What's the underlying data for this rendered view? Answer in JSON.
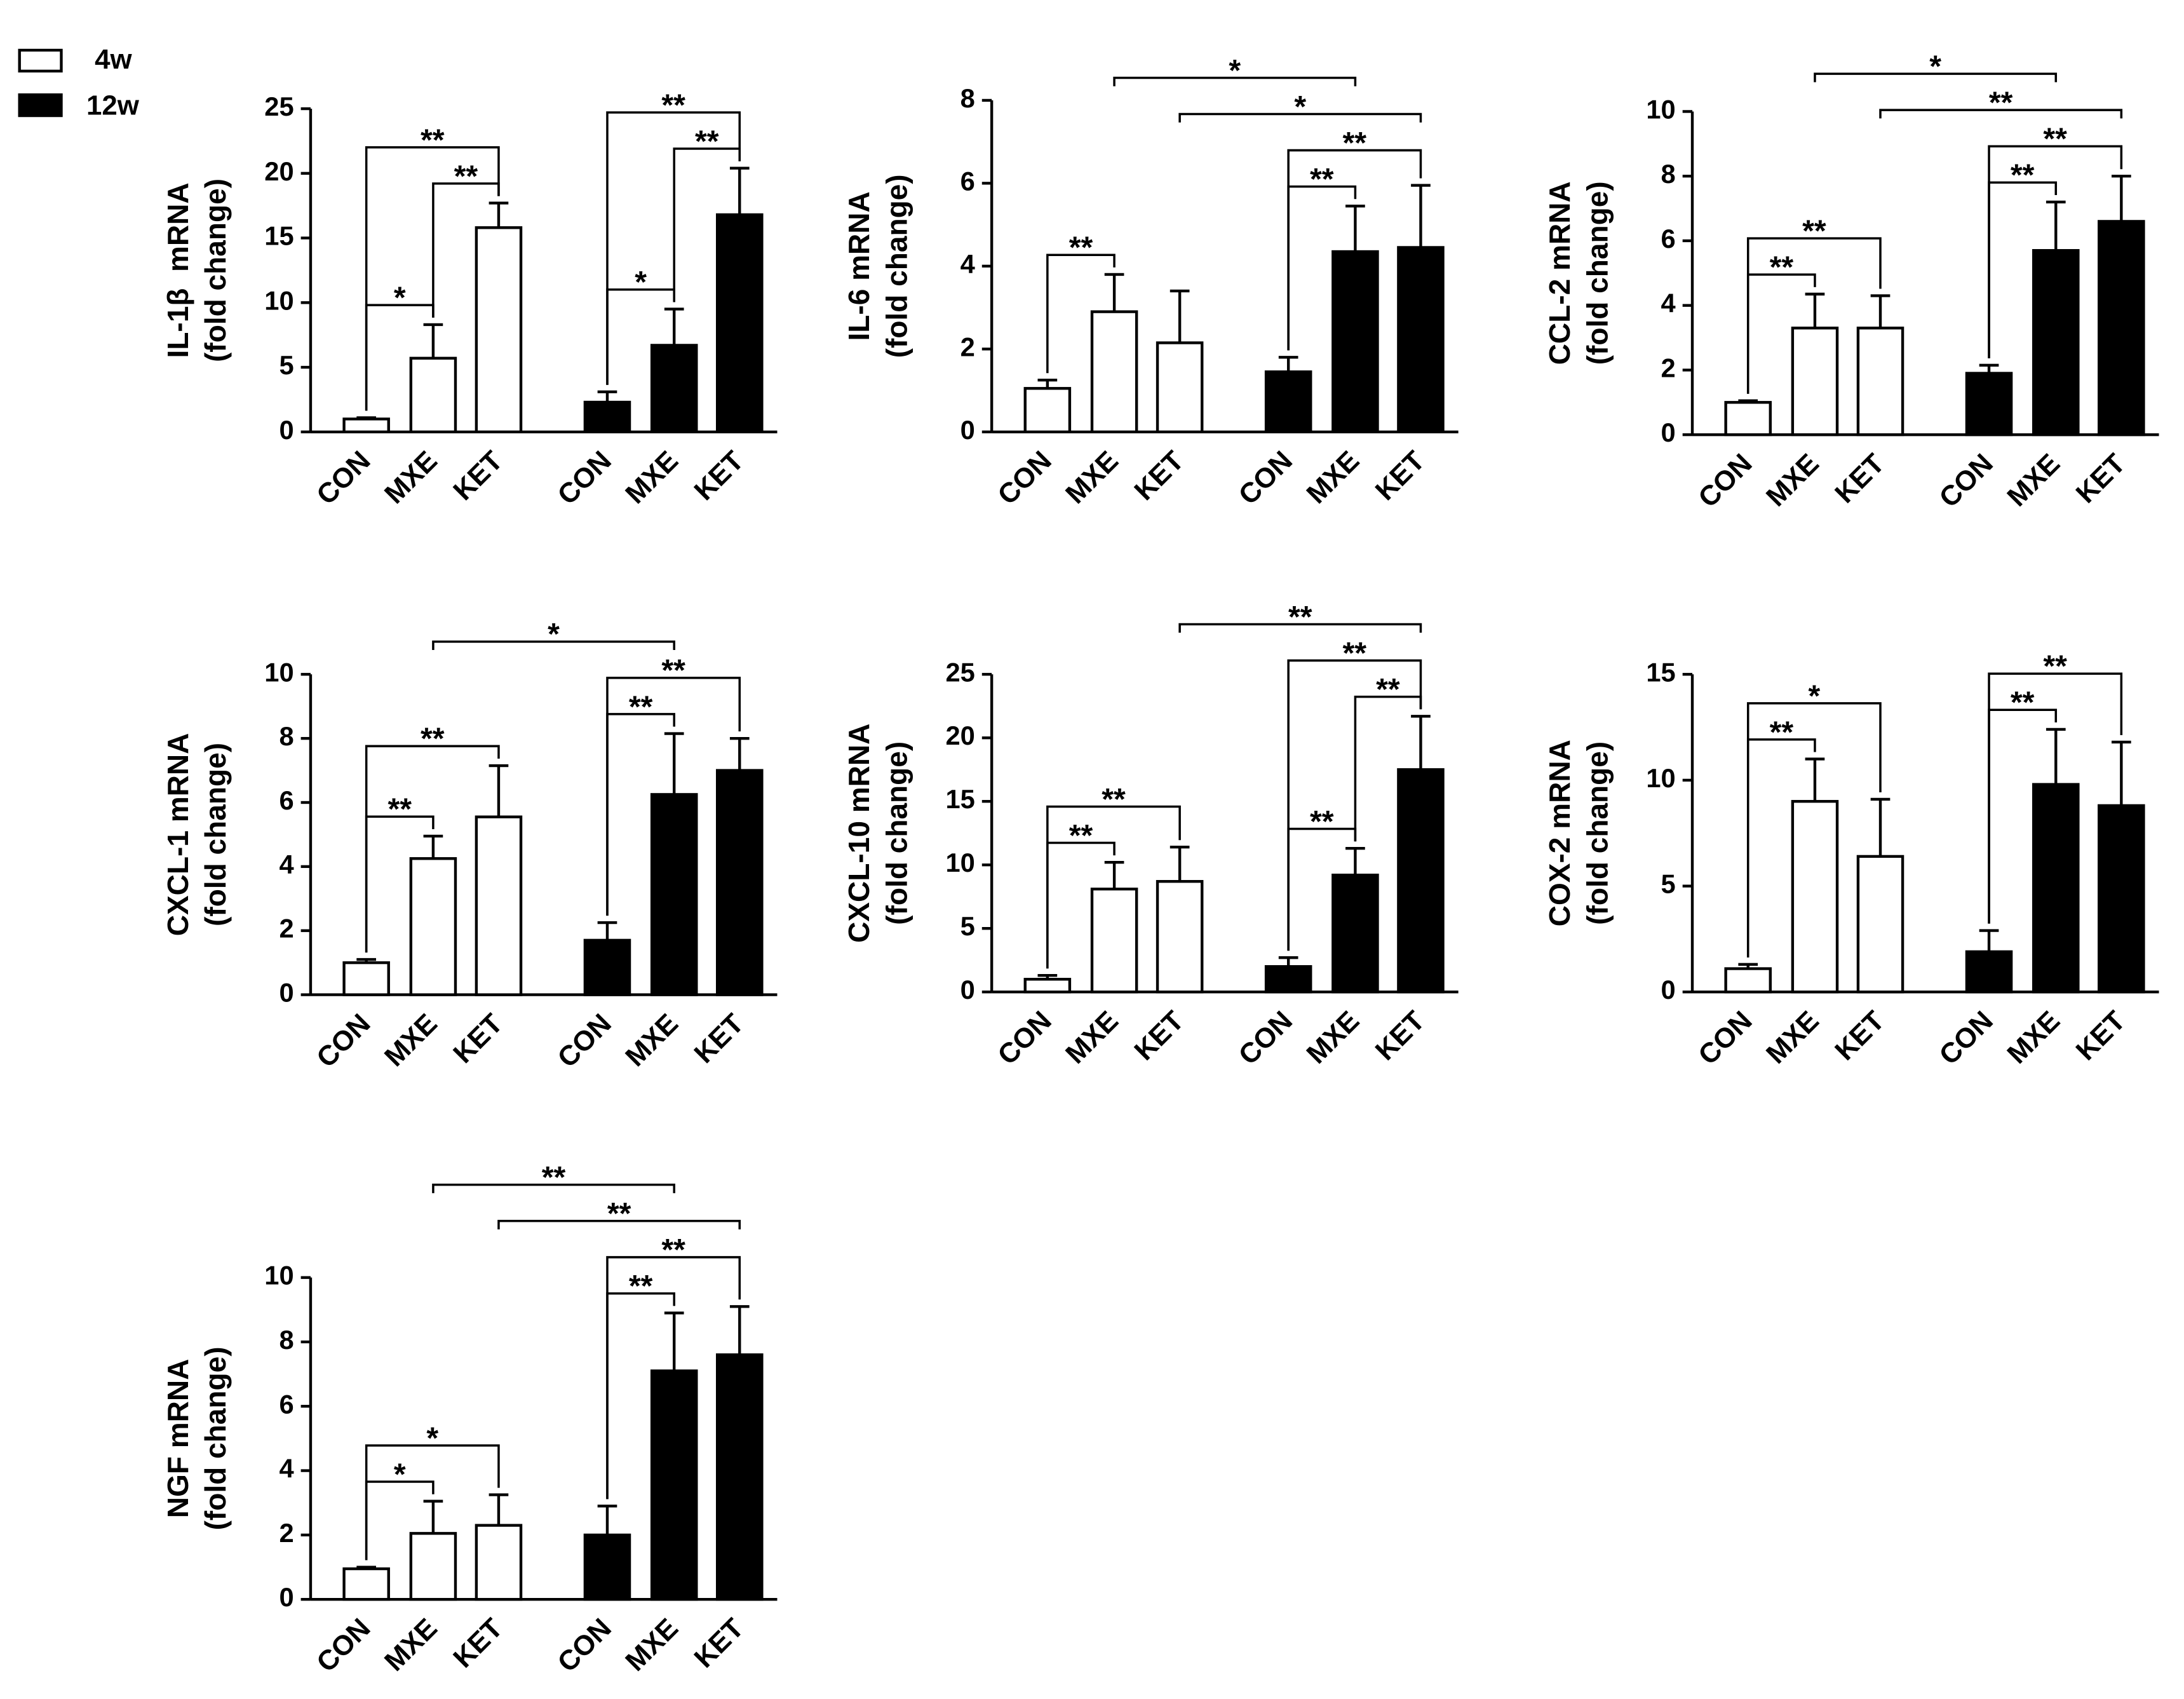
{
  "legend": [
    {
      "name": "4w",
      "color": "#ffffff"
    },
    {
      "name": "12w",
      "color": "#000000"
    }
  ],
  "chart_data": [
    {
      "type": "bar",
      "ylabel": [
        "IL-1β  mRNA",
        "(fold change)"
      ],
      "categories": [
        "CON",
        "MXE",
        "KET"
      ],
      "ylim": [
        0,
        25
      ],
      "yticks": [
        0,
        5,
        10,
        15,
        20,
        25
      ],
      "series": [
        {
          "values": [
            1.0,
            5.7,
            15.8
          ],
          "errors": [
            0.1,
            2.6,
            1.9
          ]
        },
        {
          "values": [
            2.3,
            6.7,
            16.8
          ],
          "errors": [
            0.8,
            2.8,
            3.6
          ]
        }
      ],
      "comparisons": [
        {
          "a": [
            0,
            0
          ],
          "b": [
            0,
            1
          ],
          "label": "*"
        },
        {
          "a": [
            0,
            1
          ],
          "b": [
            0,
            2
          ],
          "label": "**"
        },
        {
          "a": [
            0,
            0
          ],
          "b": [
            0,
            2
          ],
          "label": "**"
        },
        {
          "a": [
            1,
            0
          ],
          "b": [
            1,
            1
          ],
          "label": "*"
        },
        {
          "a": [
            1,
            1
          ],
          "b": [
            1,
            2
          ],
          "label": "**"
        },
        {
          "a": [
            1,
            0
          ],
          "b": [
            1,
            2
          ],
          "label": "**"
        }
      ]
    },
    {
      "type": "bar",
      "ylabel": [
        "IL-6 mRNA",
        "(fold change)"
      ],
      "categories": [
        "CON",
        "MXE",
        "KET"
      ],
      "ylim": [
        0,
        8
      ],
      "yticks": [
        0,
        2,
        4,
        6,
        8
      ],
      "series": [
        {
          "values": [
            1.05,
            2.9,
            2.15
          ],
          "errors": [
            0.2,
            0.9,
            1.25
          ]
        },
        {
          "values": [
            1.45,
            4.35,
            4.45
          ],
          "errors": [
            0.35,
            1.1,
            1.5
          ]
        }
      ],
      "comparisons": [
        {
          "a": [
            0,
            0
          ],
          "b": [
            0,
            1
          ],
          "label": "**"
        },
        {
          "a": [
            1,
            0
          ],
          "b": [
            1,
            1
          ],
          "label": "**"
        },
        {
          "a": [
            1,
            0
          ],
          "b": [
            1,
            2
          ],
          "label": "**"
        },
        {
          "a": [
            0,
            2
          ],
          "b": [
            1,
            2
          ],
          "label": "*"
        },
        {
          "a": [
            0,
            1
          ],
          "b": [
            1,
            1
          ],
          "label": "*"
        }
      ]
    },
    {
      "type": "bar",
      "ylabel": [
        "CCL-2 mRNA",
        "(fold change)"
      ],
      "categories": [
        "CON",
        "MXE",
        "KET"
      ],
      "ylim": [
        0,
        10
      ],
      "yticks": [
        0,
        2,
        4,
        6,
        8,
        10
      ],
      "series": [
        {
          "values": [
            1.0,
            3.3,
            3.3
          ],
          "errors": [
            0.05,
            1.05,
            1.0
          ]
        },
        {
          "values": [
            1.9,
            5.7,
            6.6
          ],
          "errors": [
            0.25,
            1.5,
            1.4
          ]
        }
      ],
      "comparisons": [
        {
          "a": [
            0,
            0
          ],
          "b": [
            0,
            1
          ],
          "label": "**"
        },
        {
          "a": [
            0,
            0
          ],
          "b": [
            0,
            2
          ],
          "label": "**"
        },
        {
          "a": [
            1,
            0
          ],
          "b": [
            1,
            1
          ],
          "label": "**"
        },
        {
          "a": [
            1,
            0
          ],
          "b": [
            1,
            2
          ],
          "label": "**"
        },
        {
          "a": [
            0,
            2
          ],
          "b": [
            1,
            2
          ],
          "label": "**"
        },
        {
          "a": [
            0,
            1
          ],
          "b": [
            1,
            1
          ],
          "label": "*"
        }
      ]
    },
    {
      "type": "bar",
      "ylabel": [
        "CXCL-1 mRNA",
        "(fold change)"
      ],
      "categories": [
        "CON",
        "MXE",
        "KET"
      ],
      "ylim": [
        0,
        10
      ],
      "yticks": [
        0,
        2,
        4,
        6,
        8,
        10
      ],
      "series": [
        {
          "values": [
            1.0,
            4.25,
            5.55
          ],
          "errors": [
            0.1,
            0.7,
            1.6
          ]
        },
        {
          "values": [
            1.7,
            6.25,
            7.0
          ],
          "errors": [
            0.55,
            1.9,
            1.0
          ]
        }
      ],
      "comparisons": [
        {
          "a": [
            0,
            0
          ],
          "b": [
            0,
            1
          ],
          "label": "**"
        },
        {
          "a": [
            0,
            0
          ],
          "b": [
            0,
            2
          ],
          "label": "**"
        },
        {
          "a": [
            1,
            0
          ],
          "b": [
            1,
            1
          ],
          "label": "**"
        },
        {
          "a": [
            1,
            0
          ],
          "b": [
            1,
            2
          ],
          "label": "**"
        },
        {
          "a": [
            0,
            1
          ],
          "b": [
            1,
            1
          ],
          "label": "*"
        }
      ]
    },
    {
      "type": "bar",
      "ylabel": [
        "CXCL-10 mRNA",
        "(fold change)"
      ],
      "categories": [
        "CON",
        "MXE",
        "KET"
      ],
      "ylim": [
        0,
        25
      ],
      "yticks": [
        0,
        5,
        10,
        15,
        20,
        25
      ],
      "series": [
        {
          "values": [
            1.0,
            8.1,
            8.7
          ],
          "errors": [
            0.3,
            2.1,
            2.7
          ]
        },
        {
          "values": [
            2.0,
            9.2,
            17.5
          ],
          "errors": [
            0.7,
            2.1,
            4.2
          ]
        }
      ],
      "comparisons": [
        {
          "a": [
            0,
            0
          ],
          "b": [
            0,
            1
          ],
          "label": "**"
        },
        {
          "a": [
            0,
            0
          ],
          "b": [
            0,
            2
          ],
          "label": "**"
        },
        {
          "a": [
            1,
            0
          ],
          "b": [
            1,
            1
          ],
          "label": "**"
        },
        {
          "a": [
            1,
            1
          ],
          "b": [
            1,
            2
          ],
          "label": "**"
        },
        {
          "a": [
            1,
            0
          ],
          "b": [
            1,
            2
          ],
          "label": "**"
        },
        {
          "a": [
            0,
            2
          ],
          "b": [
            1,
            2
          ],
          "label": "**"
        }
      ]
    },
    {
      "type": "bar",
      "ylabel": [
        "COX-2 mRNA",
        "(fold change)"
      ],
      "categories": [
        "CON",
        "MXE",
        "KET"
      ],
      "ylim": [
        0,
        15
      ],
      "yticks": [
        0,
        5,
        10,
        15
      ],
      "series": [
        {
          "values": [
            1.1,
            9.0,
            6.4
          ],
          "errors": [
            0.2,
            2.0,
            2.7
          ]
        },
        {
          "values": [
            1.9,
            9.8,
            8.8
          ],
          "errors": [
            1.0,
            2.6,
            3.0
          ]
        }
      ],
      "comparisons": [
        {
          "a": [
            0,
            0
          ],
          "b": [
            0,
            1
          ],
          "label": "**"
        },
        {
          "a": [
            0,
            0
          ],
          "b": [
            0,
            2
          ],
          "label": "*"
        },
        {
          "a": [
            1,
            0
          ],
          "b": [
            1,
            1
          ],
          "label": "**"
        },
        {
          "a": [
            1,
            0
          ],
          "b": [
            1,
            2
          ],
          "label": "**"
        }
      ]
    },
    {
      "type": "bar",
      "ylabel": [
        "NGF mRNA",
        "(fold change)"
      ],
      "categories": [
        "CON",
        "MXE",
        "KET"
      ],
      "ylim": [
        0,
        10
      ],
      "yticks": [
        0,
        2,
        4,
        6,
        8,
        10
      ],
      "series": [
        {
          "values": [
            0.95,
            2.05,
            2.3
          ],
          "errors": [
            0.05,
            1.0,
            0.95
          ]
        },
        {
          "values": [
            2.0,
            7.1,
            7.6
          ],
          "errors": [
            0.9,
            1.8,
            1.5
          ]
        }
      ],
      "comparisons": [
        {
          "a": [
            0,
            0
          ],
          "b": [
            0,
            1
          ],
          "label": "*"
        },
        {
          "a": [
            0,
            0
          ],
          "b": [
            0,
            2
          ],
          "label": "*"
        },
        {
          "a": [
            1,
            0
          ],
          "b": [
            1,
            1
          ],
          "label": "**"
        },
        {
          "a": [
            1,
            0
          ],
          "b": [
            1,
            2
          ],
          "label": "**"
        },
        {
          "a": [
            0,
            2
          ],
          "b": [
            1,
            2
          ],
          "label": "**"
        },
        {
          "a": [
            0,
            1
          ],
          "b": [
            1,
            1
          ],
          "label": "**"
        }
      ]
    }
  ]
}
